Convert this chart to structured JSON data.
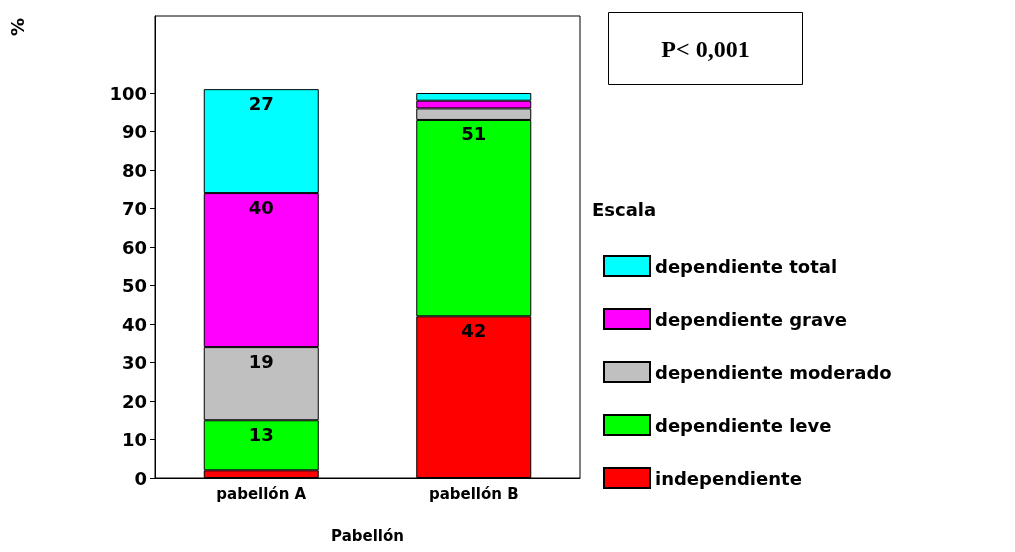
{
  "chart_data": {
    "type": "bar",
    "stacked": true,
    "xlabel": "Pabellón",
    "ylabel": "%",
    "legend_title": "Escala",
    "legend": "right",
    "grid": false,
    "categories": [
      "pabellón A",
      "pabellón B"
    ],
    "ylim": [
      0,
      120
    ],
    "yticks": [
      0,
      10,
      20,
      30,
      40,
      50,
      60,
      70,
      80,
      90,
      100
    ],
    "annotations": [
      "P< 0,001"
    ],
    "series": [
      {
        "name": "independiente",
        "color": "#ff0000",
        "values": [
          2,
          42
        ],
        "value_labels": [
          null,
          "42"
        ]
      },
      {
        "name": "dependiente leve",
        "color": "#00ff00",
        "values": [
          13,
          51
        ],
        "value_labels": [
          "13",
          "51"
        ]
      },
      {
        "name": "dependiente moderado",
        "color": "#c0c0c0",
        "values": [
          19,
          3
        ],
        "value_labels": [
          "19",
          null
        ]
      },
      {
        "name": "dependiente grave",
        "color": "#ff00ff",
        "values": [
          40,
          2
        ],
        "value_labels": [
          "40",
          null
        ]
      },
      {
        "name": "dependiente total",
        "color": "#00ffff",
        "values": [
          27,
          2
        ],
        "value_labels": [
          "27",
          null
        ]
      }
    ]
  }
}
